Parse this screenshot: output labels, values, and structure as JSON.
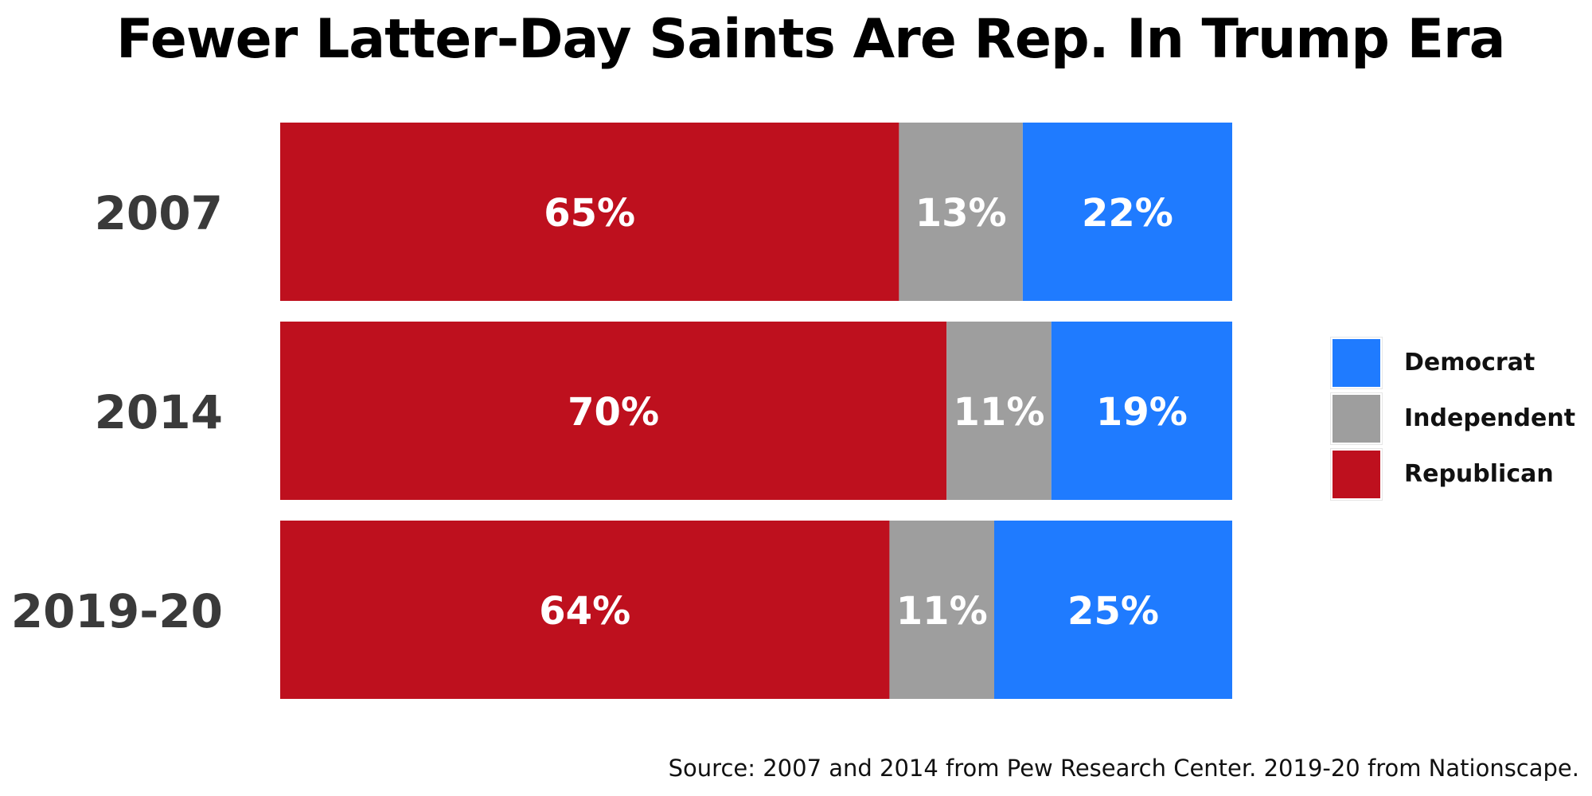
{
  "chart_data": {
    "type": "bar",
    "orientation": "horizontal",
    "stacked": true,
    "title": "Fewer Latter-Day Saints Are Rep. In Trump Era",
    "categories": [
      "2007",
      "2014",
      "2019-20"
    ],
    "series": [
      {
        "name": "Republican",
        "color": "#be101e",
        "values": [
          65,
          70,
          64
        ],
        "labels": [
          "65%",
          "70%",
          "64%"
        ]
      },
      {
        "name": "Independent",
        "color": "#9e9e9e",
        "values": [
          13,
          11,
          11
        ],
        "labels": [
          "13%",
          "11%",
          "11%"
        ]
      },
      {
        "name": "Democrat",
        "color": "#1f7bff",
        "values": [
          22,
          19,
          25
        ],
        "labels": [
          "22%",
          "19%",
          "25%"
        ]
      }
    ],
    "xlim": [
      0,
      100
    ],
    "grid": false,
    "legend": {
      "position": "right",
      "entries": [
        {
          "name": "Democrat",
          "color": "#1f7bff"
        },
        {
          "name": "Independent",
          "color": "#9e9e9e"
        },
        {
          "name": "Republican",
          "color": "#be101e"
        }
      ]
    },
    "source": "Source: 2007 and 2014 from Pew Research Center. 2019-20 from Nationscape."
  }
}
